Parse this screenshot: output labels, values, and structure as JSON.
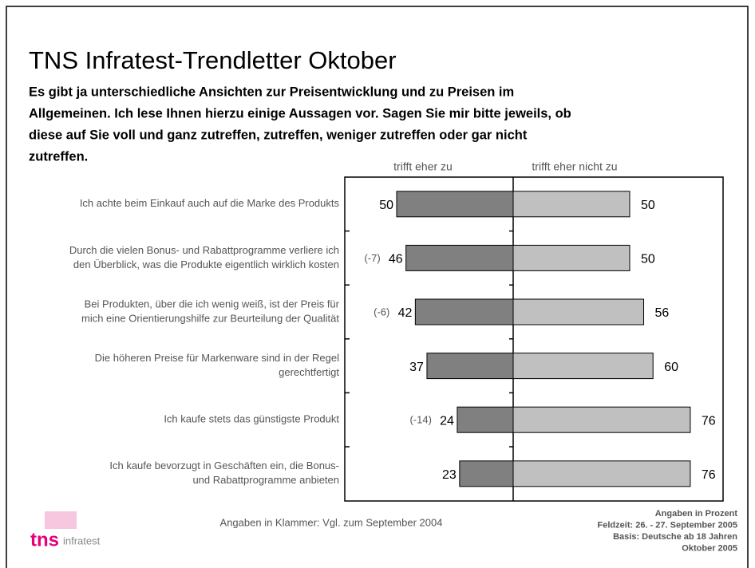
{
  "chart_data": {
    "type": "diverging_bar",
    "title": "TNS Infratest-Trendletter Oktober",
    "subtitle": [
      "Es gibt ja unterschiedliche Ansichten zur Preisentwicklung und zu Preisen im",
      "Allgemeinen. Ich lese Ihnen hierzu einige Aussagen vor. Sagen Sie mir bitte jeweils, ob",
      "diese auf Sie voll und ganz zutreffen, zutreffen, weniger zutreffen oder gar nicht",
      "zutreffen."
    ],
    "categories": [
      [
        "Ich achte beim Einkauf auch auf die Marke des Produkts"
      ],
      [
        "Durch die vielen Bonus- und Rabattprogramme verliere ich",
        "den Überblick, was die Produkte eigentlich wirklich kosten"
      ],
      [
        "Bei Produkten, über die ich wenig weiß, ist der Preis für",
        "mich eine Orientierungshilfe zur Beurteilung der Qualität"
      ],
      [
        "Die höheren Preise für Markenware sind in der Regel",
        "gerechtfertigt"
      ],
      [
        "Ich kaufe stets das günstigste Produkt"
      ],
      [
        "Ich kaufe bevorzugt in Geschäften ein, die Bonus-",
        "und Rabattprogramme anbieten"
      ]
    ],
    "series": [
      {
        "name": "trifft eher zu",
        "color": "#808080",
        "side": "left",
        "values": [
          50,
          46,
          42,
          37,
          24,
          23
        ]
      },
      {
        "name": "trifft eher nicht zu",
        "color": "#c0c0c0",
        "side": "right",
        "values": [
          50,
          50,
          56,
          60,
          76,
          76
        ]
      }
    ],
    "change_labels": [
      null,
      "(-7)",
      "(-6)",
      null,
      "(-14)",
      null
    ],
    "footnote": "Angaben in Klammer: Vgl. zum September 2004",
    "notes": [
      "Angaben in Prozent",
      "Feldzeit: 26. - 27. September 2005",
      "Basis: Deutsche ab 18 Jahren",
      "Oktober 2005"
    ],
    "logo": {
      "brand": "tns",
      "name": "infratest"
    }
  }
}
